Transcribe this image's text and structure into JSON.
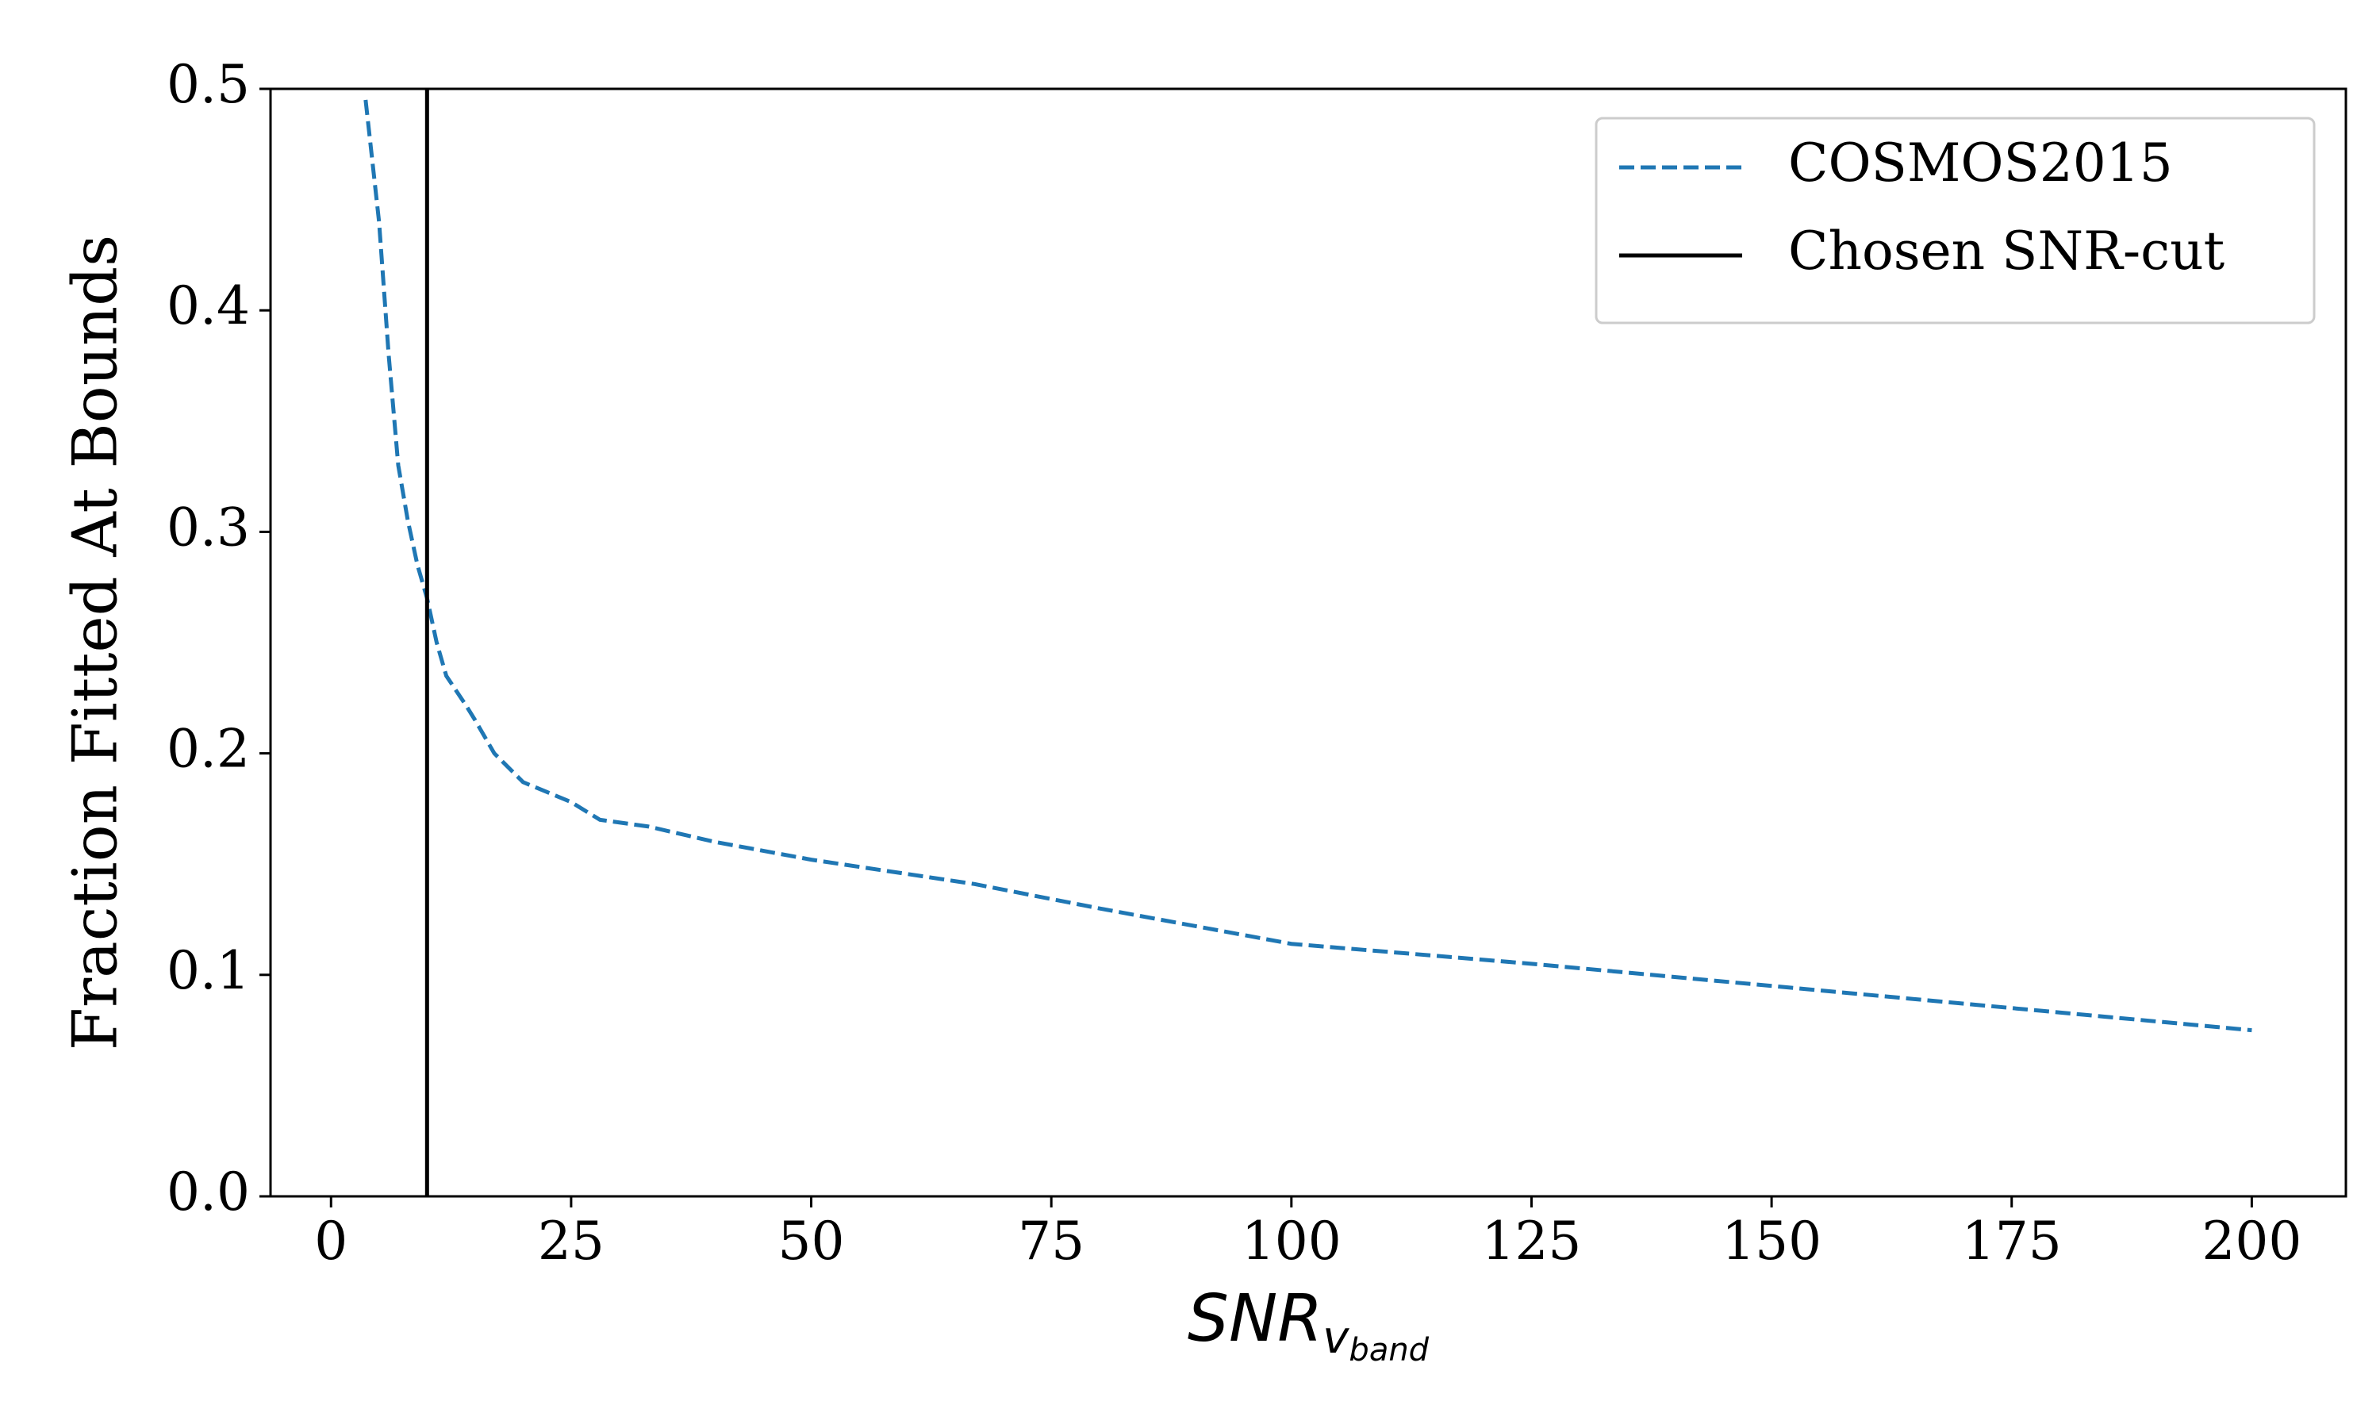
{
  "chart_data": {
    "type": "line",
    "xlabel": {
      "main": "SNR",
      "sub": "v",
      "subsub": "band"
    },
    "ylabel": "Fraction Fitted At Bounds",
    "x": [
      3.6,
      5,
      6,
      7,
      8,
      9,
      10,
      11,
      12,
      14,
      15,
      17,
      20,
      25,
      28,
      33,
      40,
      50,
      67,
      80,
      100,
      125,
      150,
      175,
      200
    ],
    "series": [
      {
        "name": "COSMOS2015",
        "color": "#1f77b4",
        "style": "dashed",
        "values": [
          0.495,
          0.44,
          0.38,
          0.33,
          0.305,
          0.285,
          0.27,
          0.25,
          0.235,
          0.222,
          0.215,
          0.2,
          0.187,
          0.178,
          0.17,
          0.167,
          0.16,
          0.152,
          0.141,
          0.13,
          0.114,
          0.105,
          0.095,
          0.085,
          0.075
        ]
      }
    ],
    "vlines": [
      {
        "name": "Chosen SNR-cut",
        "x": 10,
        "color": "#000000"
      }
    ],
    "xlim": [
      -6.3,
      209.8
    ],
    "xticks": [
      0,
      25,
      50,
      75,
      100,
      125,
      150,
      175,
      200
    ],
    "ylim": [
      0,
      0.5
    ],
    "yticks": [
      {
        "value": 0,
        "label": "0.0"
      },
      0.1,
      0.2,
      0.3,
      0.4,
      0.5
    ],
    "legend": "upper right"
  }
}
